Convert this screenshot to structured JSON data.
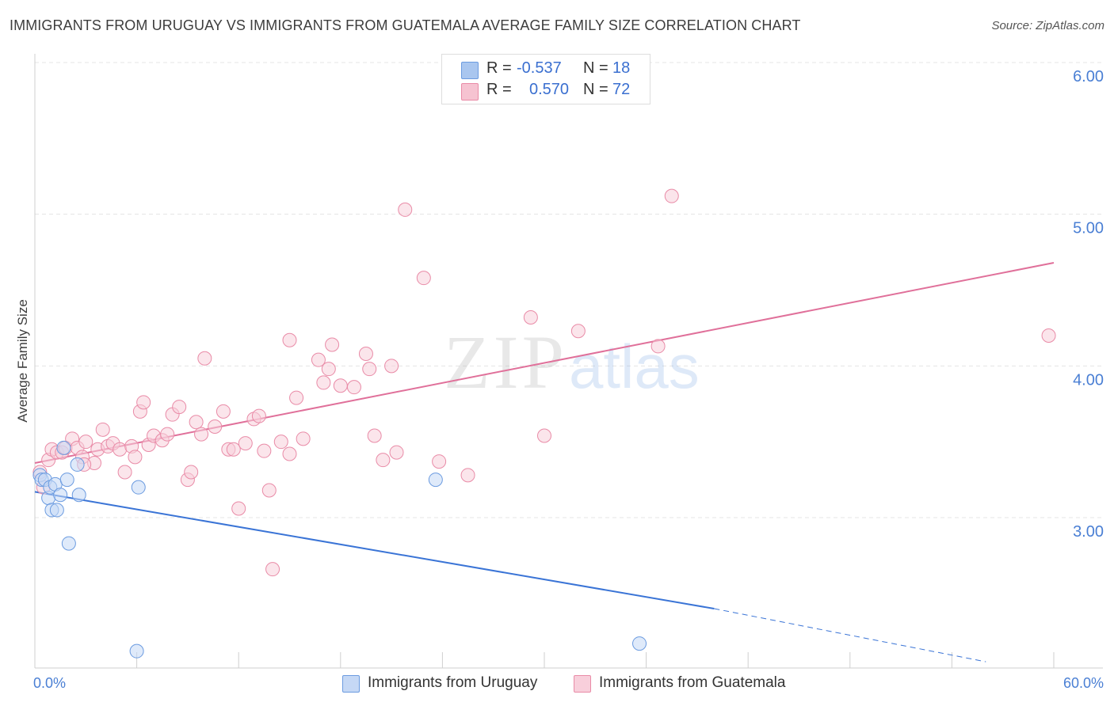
{
  "title": "IMMIGRANTS FROM URUGUAY VS IMMIGRANTS FROM GUATEMALA AVERAGE FAMILY SIZE CORRELATION CHART",
  "source": "Source: ZipAtlas.com",
  "watermark": {
    "zip": "ZIP",
    "atlas": "atlas"
  },
  "legend": {
    "r_label": "R =",
    "n_label": "N =",
    "rows": [
      {
        "r": "-0.537",
        "n": "18",
        "color": "#a9c6ef",
        "border": "#6b9be0"
      },
      {
        "r": "0.570",
        "n": "72",
        "color": "#f6c3d1",
        "border": "#e98ba7"
      }
    ]
  },
  "bottom_legend": [
    {
      "label": "Immigrants from Uruguay",
      "color": "#c5d8f5",
      "border": "#6b9be0"
    },
    {
      "label": "Immigrants from Guatemala",
      "color": "#f8cfdb",
      "border": "#e98ba7"
    }
  ],
  "chart_data": {
    "type": "scatter",
    "title": "IMMIGRANTS FROM URUGUAY VS IMMIGRANTS FROM GUATEMALA AVERAGE FAMILY SIZE CORRELATION CHART",
    "xlabel": "",
    "ylabel": "Average Family Size",
    "xlim": [
      0,
      60
    ],
    "ylim": [
      2.0,
      6.0
    ],
    "x_tick_labels": {
      "min": "0.0%",
      "max": "60.0%"
    },
    "y_ticks": [
      3.0,
      4.0,
      5.0,
      6.0
    ],
    "y_tick_labels": [
      "3.00",
      "4.00",
      "5.00",
      "6.00"
    ],
    "grid": true,
    "legend_position": "top-center",
    "series": [
      {
        "name": "Immigrants from Uruguay",
        "color": "#6b9be0",
        "fill": "#c5d8f5",
        "trend": {
          "x0": 0,
          "y0": 3.17,
          "x1": 40,
          "y1": 2.4,
          "dashed_to_x": 56,
          "dashed_to_y": 2.05
        },
        "points": [
          [
            0.3,
            3.28
          ],
          [
            0.4,
            3.25
          ],
          [
            0.6,
            3.25
          ],
          [
            0.8,
            3.13
          ],
          [
            0.9,
            3.2
          ],
          [
            1.0,
            3.05
          ],
          [
            1.2,
            3.22
          ],
          [
            1.3,
            3.05
          ],
          [
            1.5,
            3.15
          ],
          [
            1.7,
            3.46
          ],
          [
            1.9,
            3.25
          ],
          [
            2.0,
            2.83
          ],
          [
            2.5,
            3.35
          ],
          [
            2.6,
            3.15
          ],
          [
            6.0,
            2.12
          ],
          [
            6.1,
            3.2
          ],
          [
            23.6,
            3.25
          ],
          [
            35.6,
            2.17
          ]
        ]
      },
      {
        "name": "Immigrants from Guatemala",
        "color": "#e98ba7",
        "fill": "#f8cfdb",
        "trend": {
          "x0": 0,
          "y0": 3.36,
          "x1": 60,
          "y1": 4.68
        },
        "points": [
          [
            0.3,
            3.3
          ],
          [
            0.8,
            3.38
          ],
          [
            1.0,
            3.45
          ],
          [
            1.3,
            3.43
          ],
          [
            1.6,
            3.43
          ],
          [
            1.8,
            3.46
          ],
          [
            2.2,
            3.52
          ],
          [
            2.5,
            3.46
          ],
          [
            2.8,
            3.4
          ],
          [
            3.0,
            3.5
          ],
          [
            3.5,
            3.36
          ],
          [
            3.7,
            3.45
          ],
          [
            4.0,
            3.58
          ],
          [
            4.3,
            3.47
          ],
          [
            4.6,
            3.49
          ],
          [
            5.0,
            3.45
          ],
          [
            5.3,
            3.3
          ],
          [
            5.7,
            3.47
          ],
          [
            5.9,
            3.4
          ],
          [
            6.2,
            3.7
          ],
          [
            6.4,
            3.76
          ],
          [
            6.7,
            3.48
          ],
          [
            7.0,
            3.54
          ],
          [
            7.5,
            3.51
          ],
          [
            7.8,
            3.55
          ],
          [
            8.1,
            3.68
          ],
          [
            8.5,
            3.73
          ],
          [
            9.0,
            3.25
          ],
          [
            9.2,
            3.3
          ],
          [
            9.5,
            3.63
          ],
          [
            9.8,
            3.55
          ],
          [
            10.0,
            4.05
          ],
          [
            10.6,
            3.6
          ],
          [
            11.1,
            3.7
          ],
          [
            11.4,
            3.45
          ],
          [
            11.7,
            3.45
          ],
          [
            12.0,
            3.06
          ],
          [
            12.4,
            3.49
          ],
          [
            12.9,
            3.65
          ],
          [
            13.2,
            3.67
          ],
          [
            13.5,
            3.44
          ],
          [
            13.8,
            3.18
          ],
          [
            14.0,
            2.66
          ],
          [
            14.5,
            3.5
          ],
          [
            15.0,
            4.17
          ],
          [
            15.0,
            3.42
          ],
          [
            15.4,
            3.79
          ],
          [
            15.8,
            3.52
          ],
          [
            16.7,
            4.04
          ],
          [
            17.0,
            3.89
          ],
          [
            17.3,
            3.98
          ],
          [
            17.5,
            4.14
          ],
          [
            18.0,
            3.87
          ],
          [
            18.8,
            3.86
          ],
          [
            19.5,
            4.08
          ],
          [
            19.7,
            3.98
          ],
          [
            20.0,
            3.54
          ],
          [
            20.5,
            3.38
          ],
          [
            21.0,
            4.0
          ],
          [
            21.3,
            3.43
          ],
          [
            21.8,
            5.03
          ],
          [
            22.9,
            4.58
          ],
          [
            23.8,
            3.37
          ],
          [
            25.5,
            3.28
          ],
          [
            29.2,
            4.32
          ],
          [
            30.0,
            3.54
          ],
          [
            32.0,
            4.23
          ],
          [
            36.7,
            4.13
          ],
          [
            37.5,
            5.12
          ],
          [
            59.7,
            4.2
          ],
          [
            0.5,
            3.2
          ],
          [
            2.9,
            3.35
          ]
        ]
      }
    ]
  }
}
